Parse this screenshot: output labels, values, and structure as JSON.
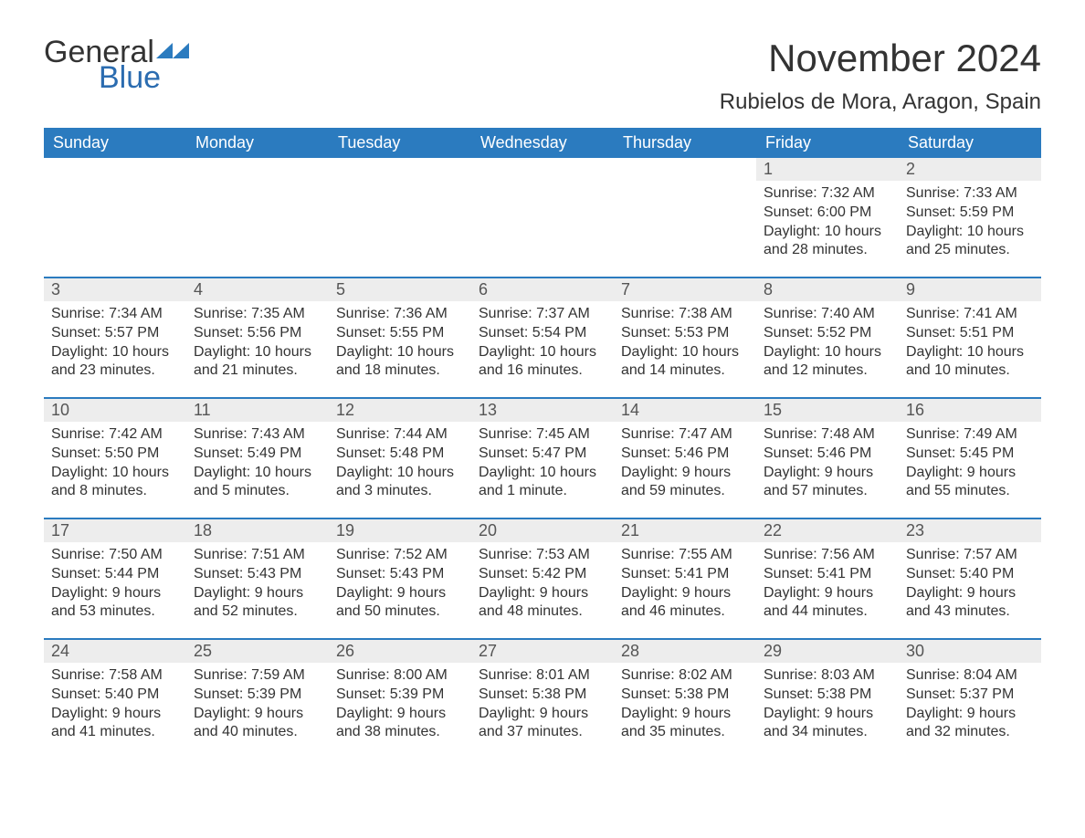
{
  "brand": {
    "general": "General",
    "blue": "Blue",
    "accent_color": "#2b7bbf"
  },
  "title": "November 2024",
  "location": "Rubielos de Mora, Aragon, Spain",
  "colors": {
    "header_bg": "#2b7bbf",
    "header_text": "#ffffff",
    "daystrip_bg": "#ededed",
    "body_text": "#333333",
    "page_bg": "#ffffff"
  },
  "days_of_week": [
    "Sunday",
    "Monday",
    "Tuesday",
    "Wednesday",
    "Thursday",
    "Friday",
    "Saturday"
  ],
  "weeks": [
    [
      null,
      null,
      null,
      null,
      null,
      {
        "n": "1",
        "sunrise": "Sunrise: 7:32 AM",
        "sunset": "Sunset: 6:00 PM",
        "dl1": "Daylight: 10 hours",
        "dl2": "and 28 minutes."
      },
      {
        "n": "2",
        "sunrise": "Sunrise: 7:33 AM",
        "sunset": "Sunset: 5:59 PM",
        "dl1": "Daylight: 10 hours",
        "dl2": "and 25 minutes."
      }
    ],
    [
      {
        "n": "3",
        "sunrise": "Sunrise: 7:34 AM",
        "sunset": "Sunset: 5:57 PM",
        "dl1": "Daylight: 10 hours",
        "dl2": "and 23 minutes."
      },
      {
        "n": "4",
        "sunrise": "Sunrise: 7:35 AM",
        "sunset": "Sunset: 5:56 PM",
        "dl1": "Daylight: 10 hours",
        "dl2": "and 21 minutes."
      },
      {
        "n": "5",
        "sunrise": "Sunrise: 7:36 AM",
        "sunset": "Sunset: 5:55 PM",
        "dl1": "Daylight: 10 hours",
        "dl2": "and 18 minutes."
      },
      {
        "n": "6",
        "sunrise": "Sunrise: 7:37 AM",
        "sunset": "Sunset: 5:54 PM",
        "dl1": "Daylight: 10 hours",
        "dl2": "and 16 minutes."
      },
      {
        "n": "7",
        "sunrise": "Sunrise: 7:38 AM",
        "sunset": "Sunset: 5:53 PM",
        "dl1": "Daylight: 10 hours",
        "dl2": "and 14 minutes."
      },
      {
        "n": "8",
        "sunrise": "Sunrise: 7:40 AM",
        "sunset": "Sunset: 5:52 PM",
        "dl1": "Daylight: 10 hours",
        "dl2": "and 12 minutes."
      },
      {
        "n": "9",
        "sunrise": "Sunrise: 7:41 AM",
        "sunset": "Sunset: 5:51 PM",
        "dl1": "Daylight: 10 hours",
        "dl2": "and 10 minutes."
      }
    ],
    [
      {
        "n": "10",
        "sunrise": "Sunrise: 7:42 AM",
        "sunset": "Sunset: 5:50 PM",
        "dl1": "Daylight: 10 hours",
        "dl2": "and 8 minutes."
      },
      {
        "n": "11",
        "sunrise": "Sunrise: 7:43 AM",
        "sunset": "Sunset: 5:49 PM",
        "dl1": "Daylight: 10 hours",
        "dl2": "and 5 minutes."
      },
      {
        "n": "12",
        "sunrise": "Sunrise: 7:44 AM",
        "sunset": "Sunset: 5:48 PM",
        "dl1": "Daylight: 10 hours",
        "dl2": "and 3 minutes."
      },
      {
        "n": "13",
        "sunrise": "Sunrise: 7:45 AM",
        "sunset": "Sunset: 5:47 PM",
        "dl1": "Daylight: 10 hours",
        "dl2": "and 1 minute."
      },
      {
        "n": "14",
        "sunrise": "Sunrise: 7:47 AM",
        "sunset": "Sunset: 5:46 PM",
        "dl1": "Daylight: 9 hours",
        "dl2": "and 59 minutes."
      },
      {
        "n": "15",
        "sunrise": "Sunrise: 7:48 AM",
        "sunset": "Sunset: 5:46 PM",
        "dl1": "Daylight: 9 hours",
        "dl2": "and 57 minutes."
      },
      {
        "n": "16",
        "sunrise": "Sunrise: 7:49 AM",
        "sunset": "Sunset: 5:45 PM",
        "dl1": "Daylight: 9 hours",
        "dl2": "and 55 minutes."
      }
    ],
    [
      {
        "n": "17",
        "sunrise": "Sunrise: 7:50 AM",
        "sunset": "Sunset: 5:44 PM",
        "dl1": "Daylight: 9 hours",
        "dl2": "and 53 minutes."
      },
      {
        "n": "18",
        "sunrise": "Sunrise: 7:51 AM",
        "sunset": "Sunset: 5:43 PM",
        "dl1": "Daylight: 9 hours",
        "dl2": "and 52 minutes."
      },
      {
        "n": "19",
        "sunrise": "Sunrise: 7:52 AM",
        "sunset": "Sunset: 5:43 PM",
        "dl1": "Daylight: 9 hours",
        "dl2": "and 50 minutes."
      },
      {
        "n": "20",
        "sunrise": "Sunrise: 7:53 AM",
        "sunset": "Sunset: 5:42 PM",
        "dl1": "Daylight: 9 hours",
        "dl2": "and 48 minutes."
      },
      {
        "n": "21",
        "sunrise": "Sunrise: 7:55 AM",
        "sunset": "Sunset: 5:41 PM",
        "dl1": "Daylight: 9 hours",
        "dl2": "and 46 minutes."
      },
      {
        "n": "22",
        "sunrise": "Sunrise: 7:56 AM",
        "sunset": "Sunset: 5:41 PM",
        "dl1": "Daylight: 9 hours",
        "dl2": "and 44 minutes."
      },
      {
        "n": "23",
        "sunrise": "Sunrise: 7:57 AM",
        "sunset": "Sunset: 5:40 PM",
        "dl1": "Daylight: 9 hours",
        "dl2": "and 43 minutes."
      }
    ],
    [
      {
        "n": "24",
        "sunrise": "Sunrise: 7:58 AM",
        "sunset": "Sunset: 5:40 PM",
        "dl1": "Daylight: 9 hours",
        "dl2": "and 41 minutes."
      },
      {
        "n": "25",
        "sunrise": "Sunrise: 7:59 AM",
        "sunset": "Sunset: 5:39 PM",
        "dl1": "Daylight: 9 hours",
        "dl2": "and 40 minutes."
      },
      {
        "n": "26",
        "sunrise": "Sunrise: 8:00 AM",
        "sunset": "Sunset: 5:39 PM",
        "dl1": "Daylight: 9 hours",
        "dl2": "and 38 minutes."
      },
      {
        "n": "27",
        "sunrise": "Sunrise: 8:01 AM",
        "sunset": "Sunset: 5:38 PM",
        "dl1": "Daylight: 9 hours",
        "dl2": "and 37 minutes."
      },
      {
        "n": "28",
        "sunrise": "Sunrise: 8:02 AM",
        "sunset": "Sunset: 5:38 PM",
        "dl1": "Daylight: 9 hours",
        "dl2": "and 35 minutes."
      },
      {
        "n": "29",
        "sunrise": "Sunrise: 8:03 AM",
        "sunset": "Sunset: 5:38 PM",
        "dl1": "Daylight: 9 hours",
        "dl2": "and 34 minutes."
      },
      {
        "n": "30",
        "sunrise": "Sunrise: 8:04 AM",
        "sunset": "Sunset: 5:37 PM",
        "dl1": "Daylight: 9 hours",
        "dl2": "and 32 minutes."
      }
    ]
  ]
}
